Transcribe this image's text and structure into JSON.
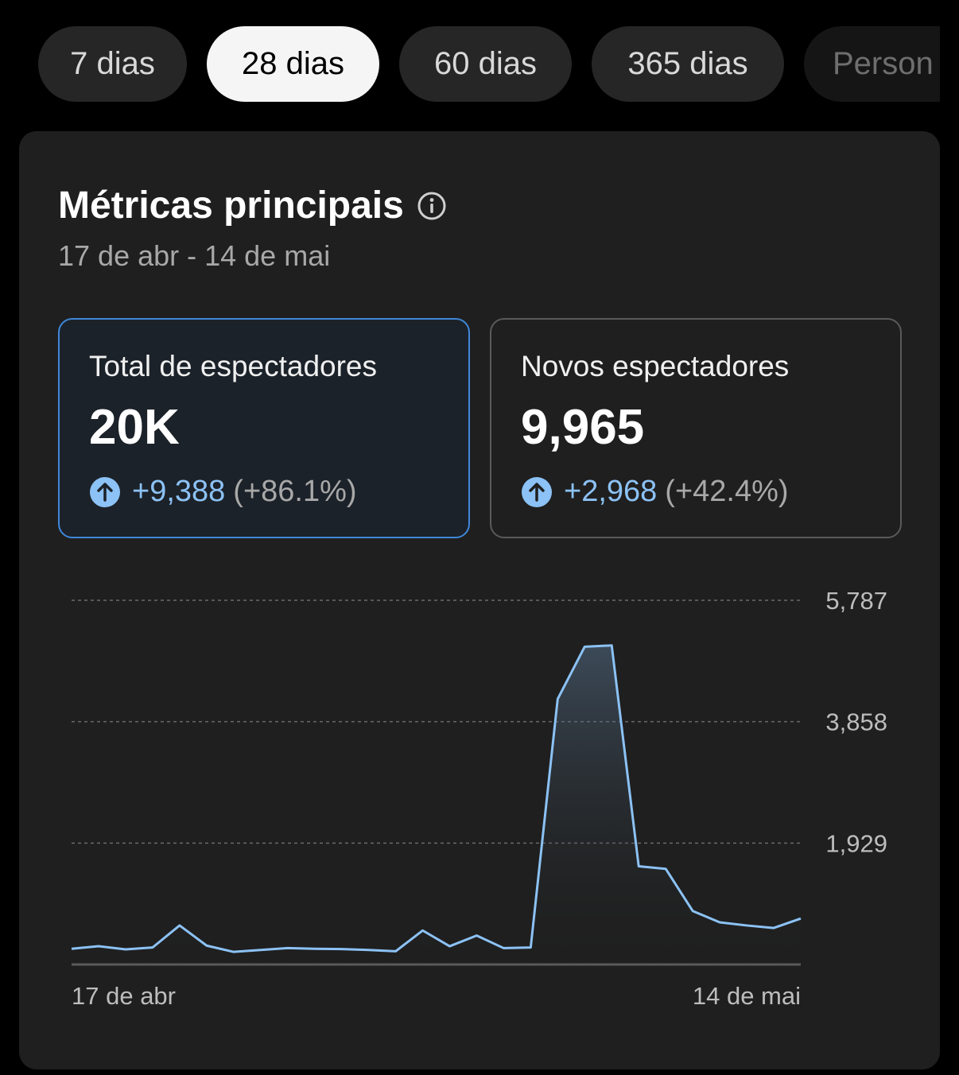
{
  "range_tabs": [
    {
      "label": "7 dias",
      "active": false
    },
    {
      "label": "28 dias",
      "active": true
    },
    {
      "label": "60 dias",
      "active": false
    },
    {
      "label": "365 dias",
      "active": false
    },
    {
      "label": "Person",
      "active": false
    }
  ],
  "card": {
    "title": "Métricas principais",
    "info_icon": "info-circle-icon",
    "date_range": "17 de abr - 14 de mai"
  },
  "metrics": [
    {
      "label": "Total de espectadores",
      "value": "20K",
      "delta": "+9,388",
      "delta_pct": "(+86.1%)",
      "selected": true
    },
    {
      "label": "Novos espectadores",
      "value": "9,965",
      "delta": "+2,968",
      "delta_pct": "(+42.4%)",
      "selected": false
    }
  ],
  "colors": {
    "accent_line": "#8cc2f5",
    "selected_border": "#3f87d9",
    "background": "#1f1f1f"
  },
  "chart_data": {
    "type": "area",
    "x_tick_labels": [
      "17 de abr",
      "14 de mai"
    ],
    "y_tick_labels": [
      "5,787",
      "3,858",
      "1,929"
    ],
    "ylim": [
      0,
      5787
    ],
    "grid": true,
    "series": [
      {
        "values": [
          250,
          290,
          240,
          270,
          620,
          300,
          200,
          230,
          260,
          250,
          245,
          230,
          210,
          540,
          290,
          460,
          260,
          270,
          4220,
          5050,
          5070,
          1560,
          1520,
          850,
          670,
          620,
          580,
          730
        ]
      }
    ]
  }
}
